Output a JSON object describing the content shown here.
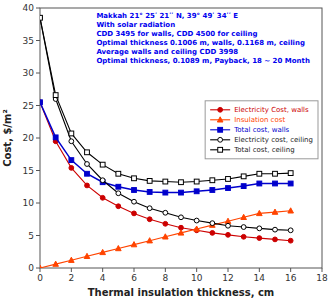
{
  "chart_data": {
    "type": "line",
    "annotations": [
      "Makkah 21° 25ʹ 21ʹʹ N, 39° 49ʹ 34ʹʹ E",
      "With solar radiation",
      "CDD 3495 for walls, CDD 4500 for ceiling",
      "Optimal thickness  0.1006 m, walls, 0.1168 m, ceiling",
      "Average walls and ceiling CDD 3998",
      "Optimal thickness, 0.1089 m, Payback, 18 ~ 20 Month"
    ],
    "xlabel": "Thermal insulation thickness, cm",
    "ylabel": "Cost, $/m²",
    "xlim": [
      0,
      18
    ],
    "ylim": [
      0,
      40
    ],
    "xticks": [
      0,
      2,
      4,
      6,
      8,
      10,
      12,
      14,
      16,
      18
    ],
    "yticks": [
      0,
      5,
      10,
      15,
      20,
      25,
      30,
      35,
      40
    ],
    "grid": false,
    "legend": "right",
    "x": [
      0,
      1,
      2,
      3,
      4,
      5,
      6,
      7,
      8,
      9,
      10,
      11,
      12,
      13,
      14,
      15,
      16
    ],
    "series": [
      {
        "name": "Electricity Cost, walls",
        "color": "#cc0000",
        "marker": "circle",
        "values": [
          25.5,
          19.5,
          15.4,
          12.7,
          10.8,
          9.5,
          8.4,
          7.5,
          6.8,
          6.2,
          5.8,
          5.4,
          5.1,
          4.8,
          4.6,
          4.4,
          4.2
        ]
      },
      {
        "name": "Insulation cost",
        "color": "#ff4400",
        "marker": "triangle",
        "values": [
          0.0,
          0.6,
          1.2,
          1.8,
          2.4,
          3.0,
          3.6,
          4.2,
          4.8,
          5.4,
          6.0,
          6.6,
          7.2,
          7.8,
          8.4,
          8.6,
          8.8
        ]
      },
      {
        "name": "Total cost, walls",
        "color": "#0000cc",
        "marker": "square",
        "values": [
          25.5,
          20.1,
          16.6,
          14.5,
          13.2,
          12.5,
          12.0,
          11.7,
          11.6,
          11.6,
          11.8,
          12.0,
          12.3,
          12.6,
          13.0,
          13.0,
          13.0
        ]
      },
      {
        "name": "Electricity cost, ceiling",
        "color": "#000000",
        "marker": "open-circle",
        "values": [
          38.5,
          26.0,
          19.5,
          16.0,
          13.5,
          11.5,
          10.2,
          9.2,
          8.5,
          7.8,
          7.3,
          6.9,
          6.5,
          6.3,
          6.1,
          5.9,
          5.8
        ]
      },
      {
        "name": "Total cost, ceiling",
        "color": "#000000",
        "marker": "open-square",
        "values": [
          38.5,
          26.6,
          20.7,
          17.8,
          15.9,
          14.5,
          13.8,
          13.4,
          13.3,
          13.2,
          13.3,
          13.5,
          13.7,
          14.1,
          14.5,
          14.5,
          14.6
        ]
      }
    ],
    "annotation_color": "#0000ee"
  }
}
